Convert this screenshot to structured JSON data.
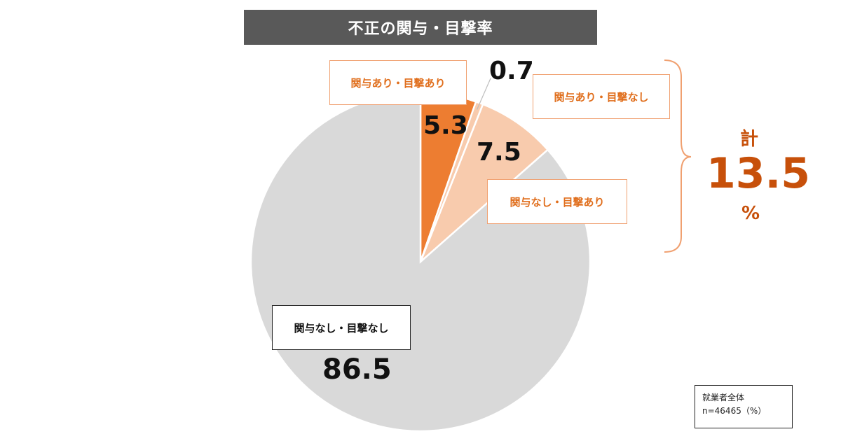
{
  "title": "不正の関与・目撃率",
  "chart_data": {
    "type": "pie",
    "unit": "%",
    "start_angle_deg": 0,
    "direction": "clockwise",
    "slices": [
      {
        "label": "関与あり・目撃あり",
        "value": 5.3,
        "color": "#ed7d31"
      },
      {
        "label": "関与あり・目撃なし",
        "value": 0.7,
        "color": "#f8cbad"
      },
      {
        "label": "関与なし・目撃あり",
        "value": 7.5,
        "color": "#f8cbad"
      },
      {
        "label": "関与なし・目撃なし",
        "value": 86.5,
        "color": "#d9d9d9"
      }
    ]
  },
  "total": {
    "label": "計",
    "value": "13.5",
    "unit": "%"
  },
  "note": {
    "line1": "就業者全体",
    "line2": "n=46465（%）"
  },
  "colors": {
    "accent": "#ed7d31",
    "light": "#f8cbad",
    "grey": "#d9d9d9",
    "total_text": "#c7500a",
    "bracket": "#f0a070"
  }
}
